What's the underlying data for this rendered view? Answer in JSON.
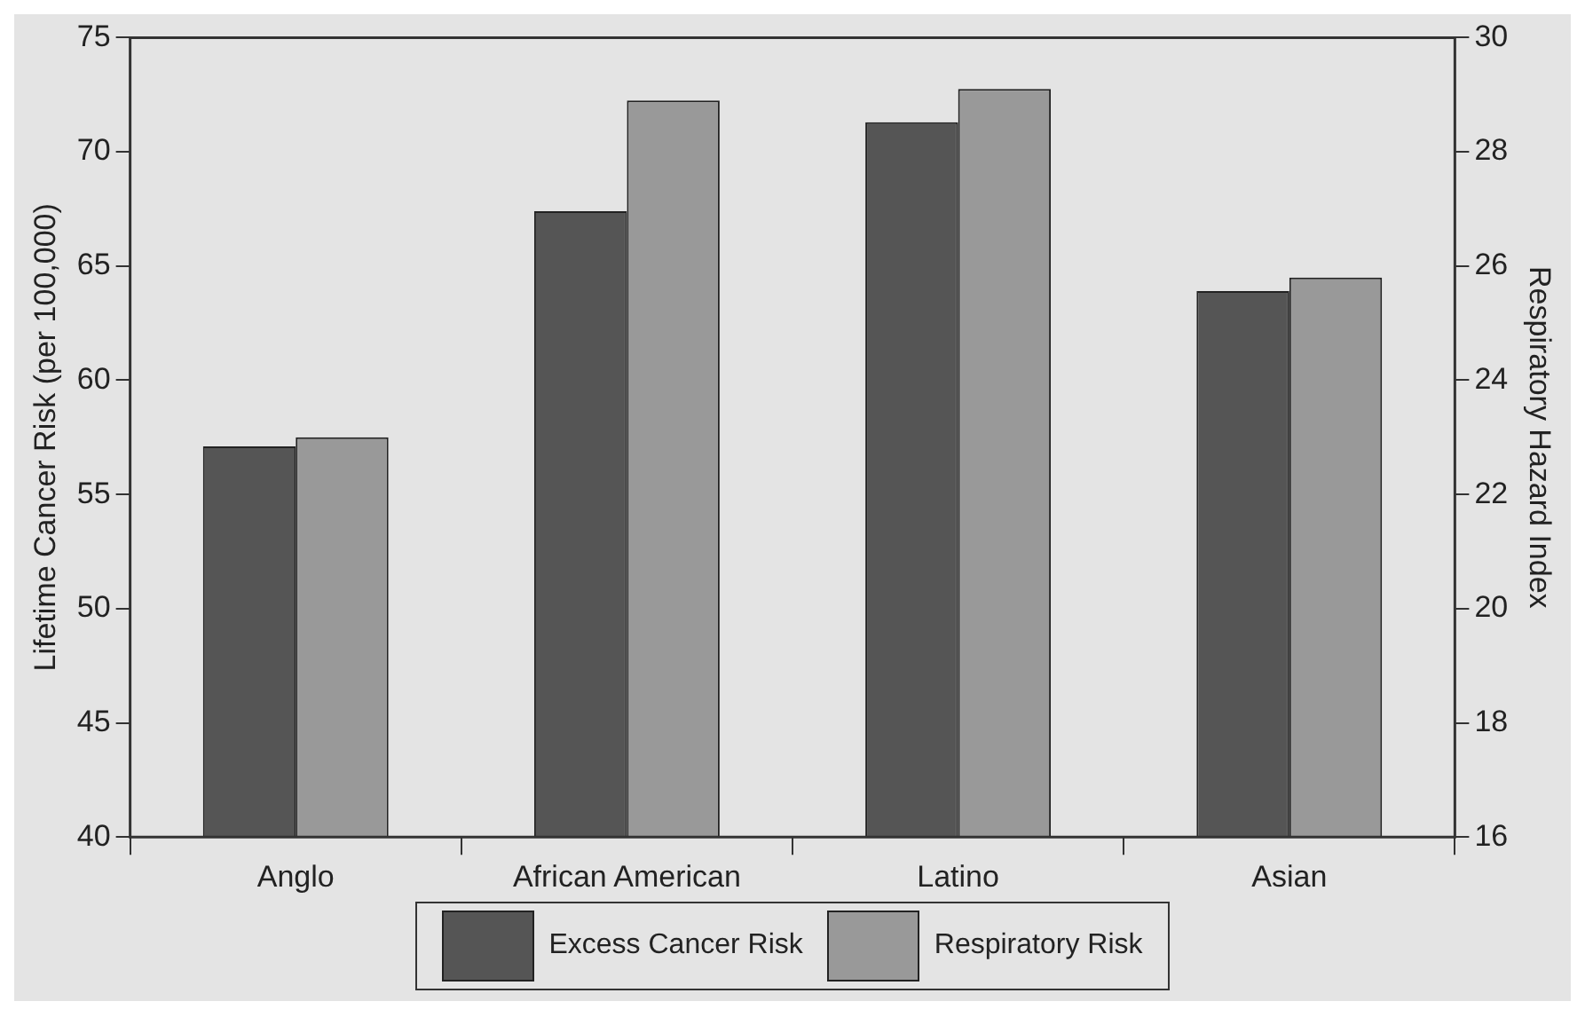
{
  "chart_data": {
    "type": "bar",
    "ylabel": "Lifetime Cancer Risk (per 100,000)",
    "y2label": "Respiratory Hazard Index",
    "categories": [
      "Anglo",
      "African American",
      "Latino",
      "Asian"
    ],
    "series": [
      {
        "name": "Excess Cancer Risk",
        "color": "#555555",
        "values": [
          57.1,
          67.4,
          71.3,
          63.9
        ]
      },
      {
        "name": "Respiratory Risk",
        "color": "#999999",
        "axis": "y2",
        "values": [
          23.0,
          28.9,
          29.1,
          25.8
        ]
      }
    ],
    "ylim": [
      40,
      75
    ],
    "yticks": [
      40,
      45,
      50,
      55,
      60,
      65,
      70,
      75
    ],
    "y2lim": [
      16,
      30
    ],
    "y2ticks": [
      16,
      18,
      20,
      22,
      24,
      26,
      28,
      30
    ],
    "grid": false,
    "legend": "bottom"
  }
}
